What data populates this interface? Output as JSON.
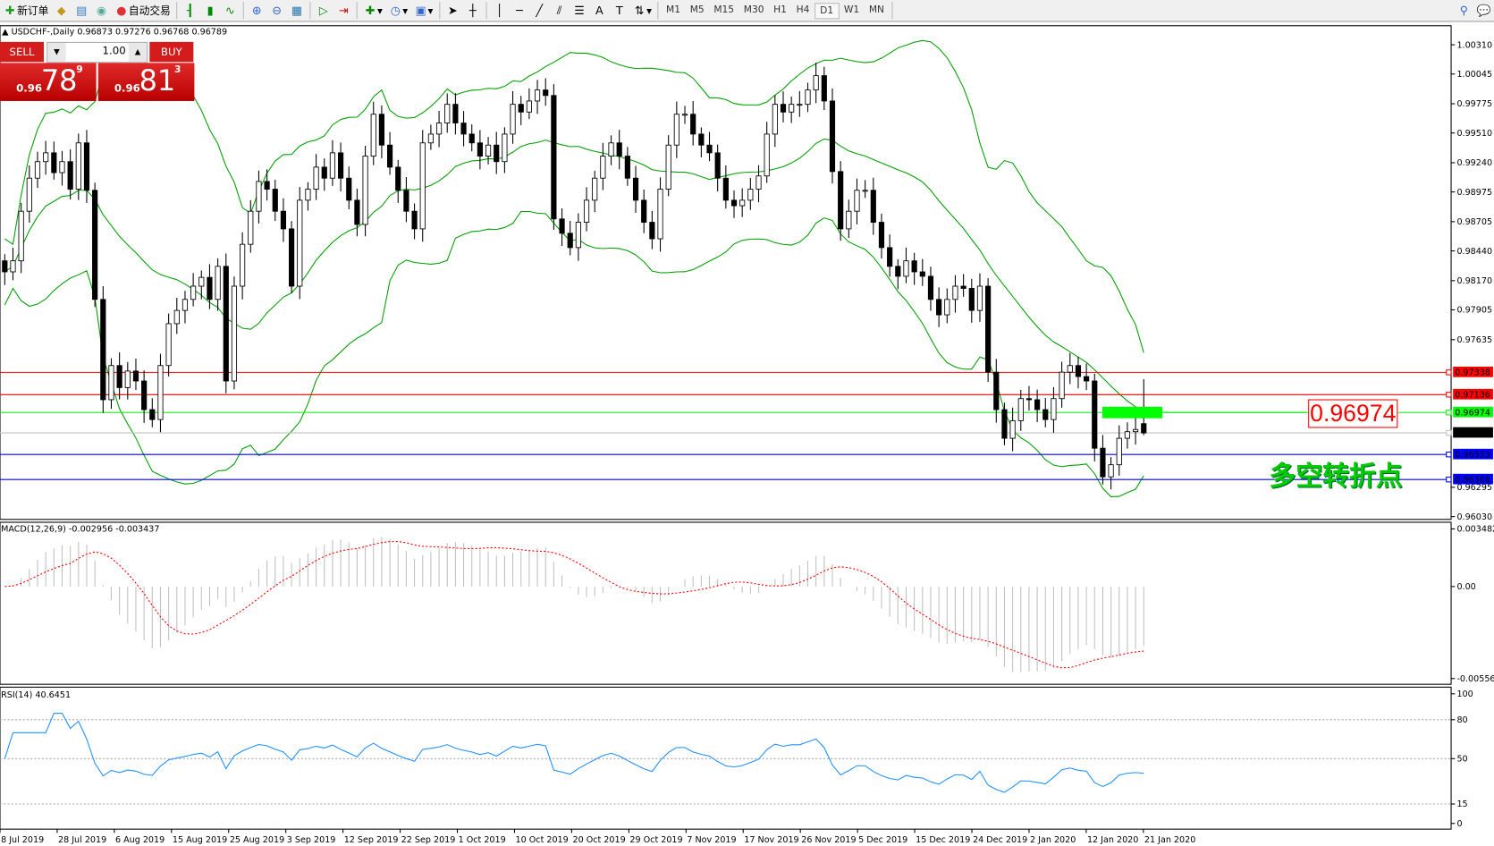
{
  "toolbar": {
    "new_order": "新订单",
    "auto_trading": "自动交易",
    "timeframes": [
      "M1",
      "M5",
      "M15",
      "M30",
      "H1",
      "H4",
      "D1",
      "W1",
      "MN"
    ],
    "active_timeframe": "D1",
    "icons": [
      "new-order-icon",
      "gold-icon",
      "terminal-icon",
      "signal-icon",
      "auto-trading-icon",
      "bar-chart-icon",
      "candlestick-icon",
      "line-chart-icon",
      "zoom-in-icon",
      "zoom-out-icon",
      "tile-icon",
      "autoscroll-icon",
      "chart-shift-icon",
      "new-indicator-icon",
      "period-icon",
      "template-icon",
      "cursor-icon",
      "crosshair-icon",
      "vertical-line-icon",
      "horizontal-line-icon",
      "trendline-icon",
      "channel-icon",
      "fibonacci-icon",
      "text-icon",
      "label-icon",
      "arrows-icon",
      "search-icon",
      "chat-icon"
    ]
  },
  "chart": {
    "header": "USDCHF-,Daily  0.96873 0.97276 0.96768 0.96789",
    "sell_label": "SELL",
    "buy_label": "BUY",
    "lot": "1.00",
    "sell_price": {
      "small": "0.96",
      "big": "78",
      "pip": "9"
    },
    "buy_price": {
      "small": "0.96",
      "big": "81",
      "pip": "3"
    },
    "annotation_price": "0.96974",
    "annotation_text": "多空转折点",
    "colors": {
      "bull": "#ffffff",
      "bear": "#000000",
      "bands": "#00a000",
      "macd_hist": "#c0c0c0",
      "macd_signal": "#ff0000",
      "rsi": "#1e90ff",
      "annotation": "#00cc00"
    }
  },
  "chart_data": {
    "type": "candlestick",
    "symbol": "USDCHF-",
    "timeframe": "Daily",
    "ylim": [
      0.9603,
      1.0031
    ],
    "price_ticks": [
      "1.00310",
      "1.00045",
      "0.99775",
      "0.99510",
      "0.99240",
      "0.98975",
      "0.98705",
      "0.98440",
      "0.98170",
      "0.97905",
      "0.97635",
      "0.96295",
      "0.96030"
    ],
    "date_ticks": [
      "8 Jul 2019",
      "28 Jul 2019",
      "6 Aug 2019",
      "15 Aug 2019",
      "25 Aug 2019",
      "3 Sep 2019",
      "12 Sep 2019",
      "22 Sep 2019",
      "1 Oct 2019",
      "10 Oct 2019",
      "20 Oct 2019",
      "29 Oct 2019",
      "7 Nov 2019",
      "17 Nov 2019",
      "26 Nov 2019",
      "5 Dec 2019",
      "15 Dec 2019",
      "24 Dec 2019",
      "2 Jan 2020",
      "12 Jan 2020",
      "21 Jan 2020"
    ],
    "closes": [
      0.9825,
      0.9835,
      0.988,
      0.991,
      0.9925,
      0.9933,
      0.9915,
      0.9925,
      0.99,
      0.9942,
      0.9899,
      0.98,
      0.9709,
      0.974,
      0.972,
      0.9735,
      0.9726,
      0.97,
      0.9691,
      0.974,
      0.9778,
      0.979,
      0.98,
      0.9812,
      0.982,
      0.98,
      0.983,
      0.9726,
      0.9812,
      0.985,
      0.988,
      0.9907,
      0.99,
      0.988,
      0.9864,
      0.9812,
      0.989,
      0.99,
      0.992,
      0.991,
      0.9933,
      0.991,
      0.989,
      0.9868,
      0.993,
      0.9968,
      0.994,
      0.992,
      0.9899,
      0.988,
      0.9864,
      0.9942,
      0.995,
      0.996,
      0.9977,
      0.996,
      0.995,
      0.9942,
      0.993,
      0.994,
      0.9925,
      0.995,
      0.9977,
      0.997,
      0.998,
      0.999,
      0.9985,
      0.9873,
      0.986,
      0.9847,
      0.987,
      0.989,
      0.991,
      0.993,
      0.9942,
      0.993,
      0.991,
      0.989,
      0.987,
      0.9855,
      0.99,
      0.994,
      0.9968,
      0.9968,
      0.995,
      0.994,
      0.9933,
      0.991,
      0.989,
      0.9885,
      0.989,
      0.99,
      0.9912,
      0.995,
      0.9977,
      0.997,
      0.9977,
      0.9977,
      0.999,
      1.0003,
      0.998,
      0.9916,
      0.9864,
      0.988,
      0.9899,
      0.9899,
      0.987,
      0.9847,
      0.983,
      0.9821,
      0.9835,
      0.9825,
      0.9821,
      0.98,
      0.9786,
      0.98,
      0.9812,
      0.981,
      0.979,
      0.9812,
      0.9734,
      0.97,
      0.9674,
      0.969,
      0.971,
      0.9709,
      0.97,
      0.9691,
      0.971,
      0.9734,
      0.974,
      0.973,
      0.9726,
      0.9665,
      0.9639,
      0.965,
      0.9674,
      0.968,
      0.9682,
      0.9679
    ],
    "last_bar": {
      "open": 0.96873,
      "high": 0.97276,
      "low": 0.96768,
      "close": 0.96789
    },
    "hlines": [
      {
        "price": 0.97338,
        "label": "0.97338",
        "color": "#ff0000"
      },
      {
        "price": 0.97136,
        "label": "0.97136",
        "color": "#ff0000"
      },
      {
        "price": 0.96974,
        "label": "0.96974",
        "color": "#00ff00"
      },
      {
        "price": 0.96789,
        "label": "0.96789",
        "color": "#c0c0c0",
        "tag": "#000000"
      },
      {
        "price": 0.96593,
        "label": "0.96593",
        "color": "#0000ff"
      },
      {
        "price": 0.96366,
        "label": "0.96366",
        "color": "#0000ff"
      }
    ],
    "indicators": {
      "bollinger": {
        "period": 20,
        "deviation": 2
      },
      "macd": {
        "title": "MACD(12,26,9) -0.002956 -0.003437",
        "ylim": [
          -0.00556,
          0.003482
        ],
        "ticks": [
          "0.003482",
          "0.00",
          "-0.00556"
        ]
      },
      "rsi": {
        "title": "RSI(14) 40.6451",
        "ylim": [
          0,
          100
        ],
        "levels": [
          80,
          50,
          15
        ],
        "ticks": [
          "100",
          "80",
          "50",
          "15",
          "0"
        ]
      }
    }
  }
}
